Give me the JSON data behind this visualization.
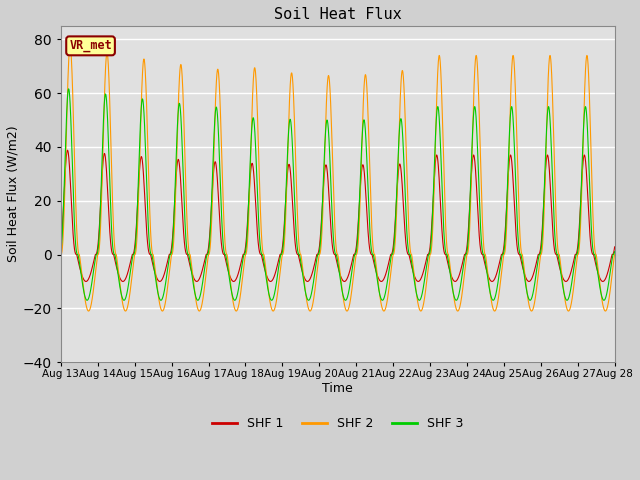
{
  "title": "Soil Heat Flux",
  "xlabel": "Time",
  "ylabel": "Soil Heat Flux (W/m2)",
  "ylim": [
    -40,
    85
  ],
  "yticks": [
    -40,
    -20,
    0,
    20,
    40,
    60,
    80
  ],
  "fig_bg": "#d0d0d0",
  "plot_bg": "#e0e0e0",
  "grid_color": "#ffffff",
  "shf1_color": "#cc0000",
  "shf2_color": "#ff9900",
  "shf3_color": "#00cc00",
  "legend_labels": [
    "SHF 1",
    "SHF 2",
    "SHF 3"
  ],
  "label_box_text": "VR_met",
  "label_box_bg": "#ffff99",
  "label_box_border": "#8b0000",
  "n_days": 15,
  "start_day": 13,
  "end_day": 28,
  "points_per_day": 288
}
